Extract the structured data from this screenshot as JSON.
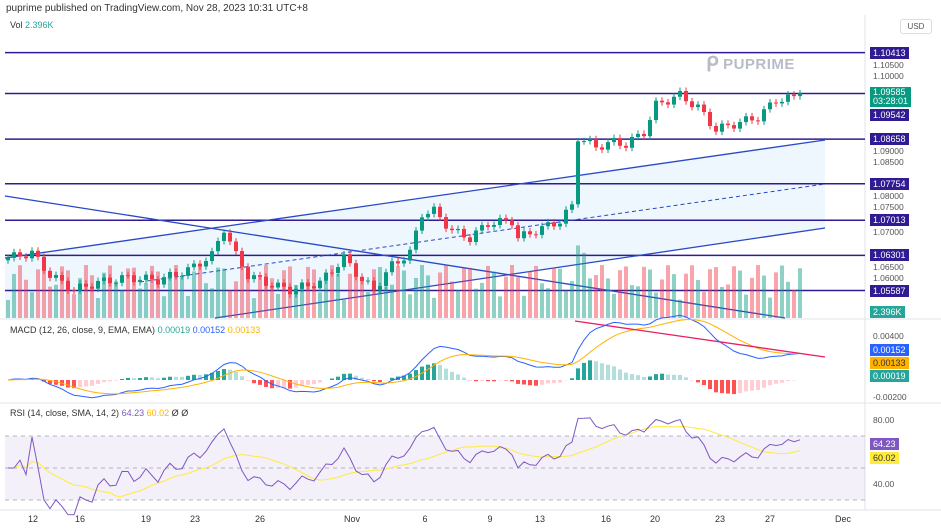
{
  "header": "puprime published on TradingView.com, Nov 28, 2023 10:31 UTC+8",
  "currency": "USD",
  "logo_text": "PUPRIME",
  "volume_legend": {
    "label": "Vol",
    "value": "2.396K"
  },
  "macd_legend": {
    "label": "MACD (12, 26, close, 9, EMA, EMA)",
    "hist": "0.00019",
    "macd": "0.00152",
    "signal": "0.00133"
  },
  "rsi_legend": {
    "label": "RSI (14, close, SMA, 14, 2)",
    "rsi": "64.23",
    "sma": "60.02",
    "extra1": "Ø",
    "extra2": "Ø"
  },
  "price_axis": [
    "1.10500",
    "1.10000",
    "1.09500",
    "1.09000",
    "1.08500",
    "1.08000",
    "1.07500",
    "1.07000",
    "1.06500",
    "1.06000"
  ],
  "levels": [
    {
      "price": 1.10413,
      "label": "1.10413"
    },
    {
      "price": 1.08658,
      "label": "1.08658"
    },
    {
      "price": 1.07754,
      "label": "1.07754"
    },
    {
      "price": 1.07013,
      "label": "1.07013"
    },
    {
      "price": 1.06301,
      "label": "1.06301"
    },
    {
      "price": 1.05587,
      "label": "1.05587"
    }
  ],
  "last_price": {
    "label": "1.09585",
    "countdown": "03:28:01",
    "price": 1.09585
  },
  "prev_price": {
    "label": "1.09542"
  },
  "volume_badge": "2.396K",
  "macd_axis": [
    "0.00400",
    "-0.00200"
  ],
  "macd_badges": {
    "macd": "0.00152",
    "signal": "0.00133",
    "hist": "0.00019"
  },
  "rsi_axis": [
    "80.00",
    "40.00"
  ],
  "rsi_badges": {
    "rsi": "64.23",
    "sma": "60.02"
  },
  "dates": [
    "12",
    "16",
    "19",
    "23",
    "26",
    "Nov",
    "6",
    "9",
    "13",
    "16",
    "20",
    "23",
    "27",
    "Dec"
  ],
  "colors": {
    "up": "#089981",
    "down": "#f23645",
    "level": "#311b92",
    "macd": "#2962ff",
    "signal": "#ffb300",
    "rsi": "#7e57c2"
  },
  "chart_data": {
    "type": "candlestick",
    "symbol_quote": "USD",
    "close_keypoints": [
      [
        0,
        1.0625
      ],
      [
        4,
        1.0635
      ],
      [
        7,
        1.059
      ],
      [
        11,
        1.056
      ],
      [
        15,
        1.0575
      ],
      [
        20,
        1.0585
      ],
      [
        25,
        1.058
      ],
      [
        30,
        1.06
      ],
      [
        34,
        1.063
      ],
      [
        36,
        1.0685
      ],
      [
        38,
        1.063
      ],
      [
        40,
        1.059
      ],
      [
        44,
        1.057
      ],
      [
        47,
        1.056
      ],
      [
        52,
        1.0575
      ],
      [
        56,
        1.0625
      ],
      [
        59,
        1.058
      ],
      [
        61,
        1.056
      ],
      [
        64,
        1.061
      ],
      [
        67,
        1.0635
      ],
      [
        69,
        1.0715
      ],
      [
        71,
        1.072
      ],
      [
        74,
        1.068
      ],
      [
        77,
        1.0665
      ],
      [
        80,
        1.0695
      ],
      [
        84,
        1.07
      ],
      [
        85,
        1.0665
      ],
      [
        89,
        1.0685
      ],
      [
        92,
        1.07
      ],
      [
        94,
        1.073
      ],
      [
        95,
        1.087
      ],
      [
        98,
        1.085
      ],
      [
        101,
        1.086
      ],
      [
        103,
        1.0855
      ],
      [
        106,
        1.088
      ],
      [
        108,
        1.0935
      ],
      [
        112,
        1.0955
      ],
      [
        115,
        1.093
      ],
      [
        118,
        1.0885
      ],
      [
        122,
        1.09
      ],
      [
        125,
        1.091
      ],
      [
        128,
        1.0945
      ],
      [
        131,
        1.095
      ],
      [
        132,
        1.09585
      ]
    ]
  }
}
